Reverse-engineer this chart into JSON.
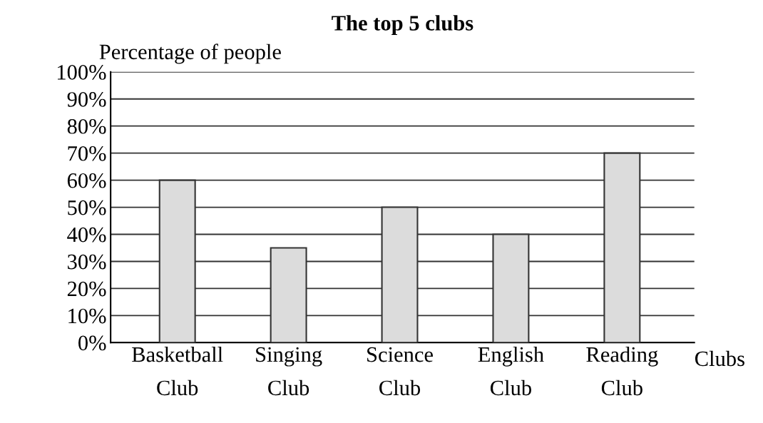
{
  "chart_data": {
    "type": "bar",
    "title": "The top 5 clubs",
    "ylabel": "Percentage of people",
    "xlabel": "Clubs",
    "categories": [
      "Basketball\nClub",
      "Singing\nClub",
      "Science\nClub",
      "English\nClub",
      "Reading\nClub"
    ],
    "values": [
      60,
      35,
      50,
      40,
      70
    ],
    "color": "#dcdcdc",
    "ylim": [
      0,
      100
    ],
    "yticks": [
      {
        "value": 0,
        "label": "0%"
      },
      {
        "value": 10,
        "label": "10%"
      },
      {
        "value": 20,
        "label": "20%"
      },
      {
        "value": 30,
        "label": "30%"
      },
      {
        "value": 40,
        "label": "40%"
      },
      {
        "value": 50,
        "label": "50%"
      },
      {
        "value": 60,
        "label": "60%"
      },
      {
        "value": 70,
        "label": "70%"
      },
      {
        "value": 80,
        "label": "80%"
      },
      {
        "value": 90,
        "label": "90%"
      },
      {
        "value": 100,
        "label": "100%"
      }
    ],
    "grid": "y"
  }
}
